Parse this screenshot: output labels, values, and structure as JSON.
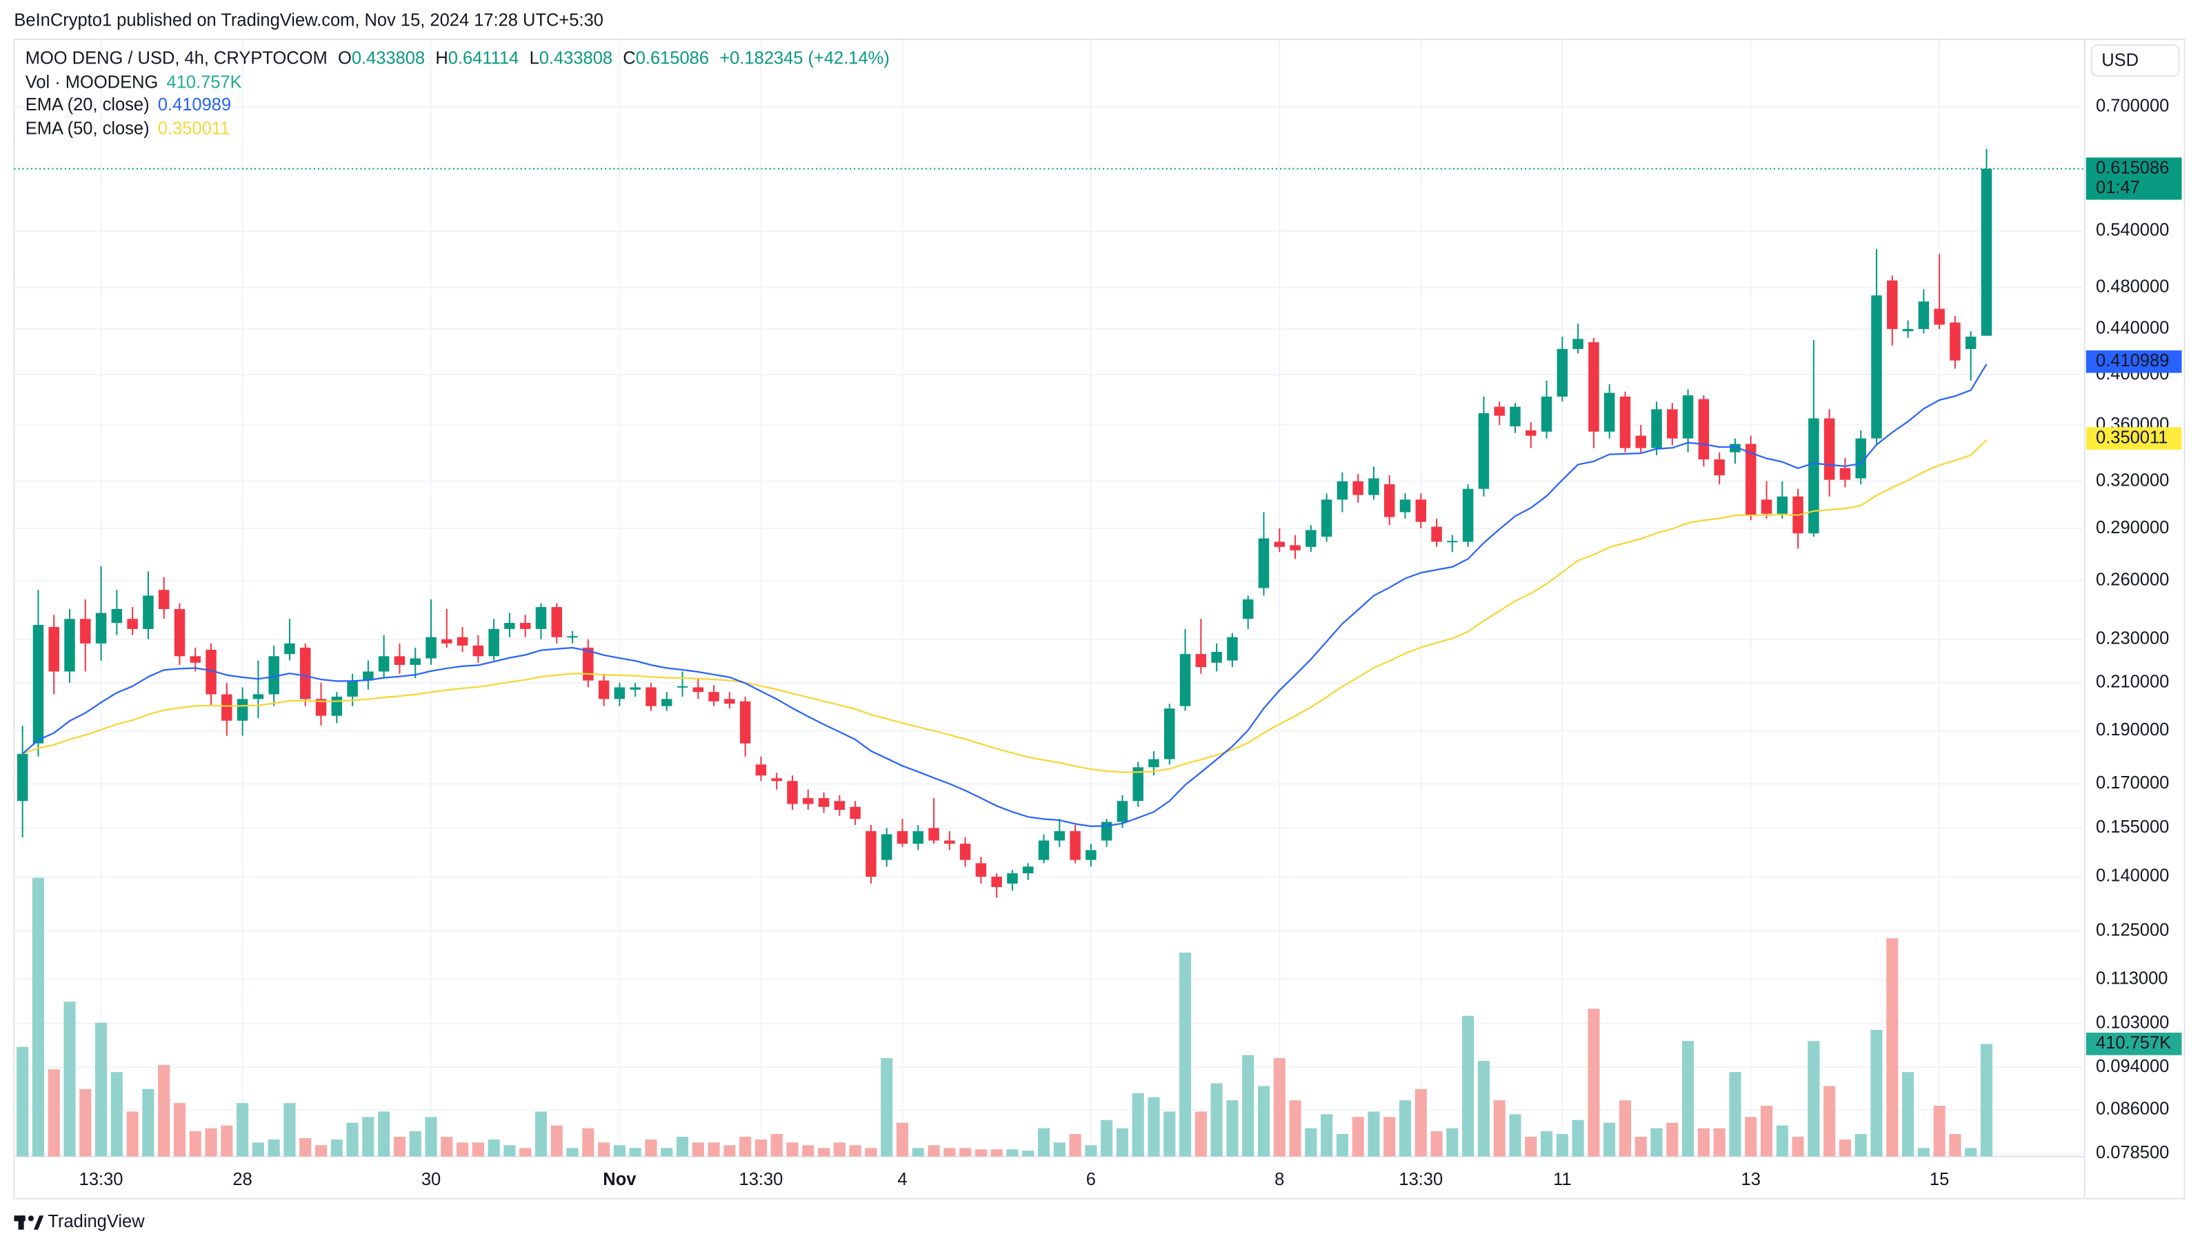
{
  "header": "BeInCrypto1 published on TradingView.com, Nov 15, 2024 17:28 UTC+5:30",
  "footer": "TradingView",
  "currency": "USD",
  "legend": {
    "symbol": "MOO DENG / USD, 4h, CRYPTOCOM",
    "ohlc_labels": [
      "O",
      "H",
      "L",
      "C"
    ],
    "change": "+0.182345 (+42.14%)",
    "vol_name": "Vol · MOODENG",
    "vol_value": "410.757K",
    "ema20_name": "EMA (20, close)",
    "ema20_last": 0.410989,
    "ema20_color": "#2962ff",
    "ema50_name": "EMA (50, close)",
    "ema50_last": 0.350011,
    "ema50_color": "#f7d634",
    "countdown": "01:47"
  },
  "chart_data": {
    "type": "candlestick",
    "log_scale": true,
    "grid": true,
    "up_color": "#089981",
    "down_color": "#f23645",
    "vol_up_color": "#92d2cc",
    "vol_down_color": "#f7a9a7",
    "ylim": [
      0.078,
      0.8
    ],
    "yticks": [
      {
        "value": 0.7,
        "label": "0.700000"
      },
      {
        "value": 0.54,
        "label": "0.540000"
      },
      {
        "value": 0.48,
        "label": "0.480000"
      },
      {
        "value": 0.44,
        "label": "0.440000"
      },
      {
        "value": 0.4,
        "label": "0.400000"
      },
      {
        "value": 0.36,
        "label": "0.360000"
      },
      {
        "value": 0.32,
        "label": "0.320000"
      },
      {
        "value": 0.29,
        "label": "0.290000"
      },
      {
        "value": 0.26,
        "label": "0.260000"
      },
      {
        "value": 0.23,
        "label": "0.230000"
      },
      {
        "value": 0.21,
        "label": "0.210000"
      },
      {
        "value": 0.19,
        "label": "0.190000"
      },
      {
        "value": 0.17,
        "label": "0.170000"
      },
      {
        "value": 0.155,
        "label": "0.155000"
      },
      {
        "value": 0.14,
        "label": "0.140000"
      },
      {
        "value": 0.125,
        "label": "0.125000"
      },
      {
        "value": 0.113,
        "label": "0.113000"
      },
      {
        "value": 0.103,
        "label": "0.103000"
      },
      {
        "value": 0.094,
        "label": "0.094000"
      },
      {
        "value": 0.086,
        "label": "0.086000"
      },
      {
        "value": 0.0785,
        "label": "0.078500"
      }
    ],
    "volume_ylim": [
      0,
      1232000
    ],
    "categories": [
      null,
      null,
      null,
      null,
      null,
      "13:30",
      null,
      null,
      null,
      null,
      null,
      null,
      null,
      null,
      "28",
      null,
      null,
      null,
      null,
      null,
      null,
      null,
      null,
      null,
      null,
      null,
      "30",
      null,
      null,
      null,
      null,
      null,
      null,
      null,
      null,
      null,
      null,
      null,
      "Nov",
      null,
      null,
      null,
      null,
      null,
      null,
      null,
      null,
      "13:30",
      null,
      null,
      null,
      null,
      null,
      null,
      null,
      null,
      "4",
      null,
      null,
      null,
      null,
      null,
      null,
      null,
      null,
      null,
      null,
      null,
      "6",
      null,
      null,
      null,
      null,
      null,
      null,
      null,
      null,
      null,
      null,
      null,
      "8",
      null,
      null,
      null,
      null,
      null,
      null,
      null,
      null,
      "13:30",
      null,
      null,
      null,
      null,
      null,
      null,
      null,
      null,
      "11",
      null,
      null,
      null,
      null,
      null,
      null,
      null,
      null,
      null,
      null,
      null,
      "13",
      null,
      null,
      null,
      null,
      null,
      null,
      null,
      null,
      null,
      null,
      null,
      "15",
      null,
      null,
      null
    ],
    "ohlc": [
      [
        0.164,
        0.192,
        0.152,
        0.181
      ],
      [
        0.185,
        0.255,
        0.18,
        0.237
      ],
      [
        0.236,
        0.242,
        0.205,
        0.215
      ],
      [
        0.215,
        0.245,
        0.21,
        0.24
      ],
      [
        0.24,
        0.25,
        0.215,
        0.228
      ],
      [
        0.228,
        0.268,
        0.22,
        0.243
      ],
      [
        0.238,
        0.255,
        0.232,
        0.245
      ],
      [
        0.24,
        0.246,
        0.232,
        0.235
      ],
      [
        0.235,
        0.265,
        0.23,
        0.252
      ],
      [
        0.255,
        0.262,
        0.24,
        0.245
      ],
      [
        0.245,
        0.248,
        0.218,
        0.222
      ],
      [
        0.222,
        0.226,
        0.215,
        0.219
      ],
      [
        0.225,
        0.228,
        0.2,
        0.205
      ],
      [
        0.205,
        0.21,
        0.188,
        0.194
      ],
      [
        0.194,
        0.208,
        0.188,
        0.203
      ],
      [
        0.203,
        0.22,
        0.195,
        0.205
      ],
      [
        0.205,
        0.227,
        0.2,
        0.222
      ],
      [
        0.223,
        0.24,
        0.22,
        0.228
      ],
      [
        0.226,
        0.228,
        0.2,
        0.203
      ],
      [
        0.203,
        0.21,
        0.192,
        0.196
      ],
      [
        0.196,
        0.206,
        0.193,
        0.204
      ],
      [
        0.204,
        0.214,
        0.2,
        0.211
      ],
      [
        0.211,
        0.22,
        0.207,
        0.215
      ],
      [
        0.215,
        0.232,
        0.212,
        0.222
      ],
      [
        0.222,
        0.228,
        0.214,
        0.218
      ],
      [
        0.218,
        0.226,
        0.212,
        0.221
      ],
      [
        0.221,
        0.25,
        0.218,
        0.231
      ],
      [
        0.23,
        0.245,
        0.226,
        0.228
      ],
      [
        0.231,
        0.236,
        0.224,
        0.227
      ],
      [
        0.227,
        0.232,
        0.219,
        0.222
      ],
      [
        0.222,
        0.24,
        0.22,
        0.235
      ],
      [
        0.235,
        0.243,
        0.231,
        0.238
      ],
      [
        0.238,
        0.242,
        0.231,
        0.235
      ],
      [
        0.235,
        0.248,
        0.23,
        0.246
      ],
      [
        0.246,
        0.248,
        0.228,
        0.231
      ],
      [
        0.231,
        0.234,
        0.228,
        0.2315
      ],
      [
        0.226,
        0.23,
        0.208,
        0.211
      ],
      [
        0.211,
        0.214,
        0.2,
        0.203
      ],
      [
        0.203,
        0.21,
        0.2,
        0.208
      ],
      [
        0.207,
        0.21,
        0.204,
        0.208
      ],
      [
        0.208,
        0.21,
        0.198,
        0.2
      ],
      [
        0.2,
        0.206,
        0.198,
        0.203
      ],
      [
        0.208,
        0.215,
        0.204,
        0.2085
      ],
      [
        0.208,
        0.212,
        0.203,
        0.206
      ],
      [
        0.206,
        0.209,
        0.2,
        0.202
      ],
      [
        0.203,
        0.206,
        0.199,
        0.201
      ],
      [
        0.202,
        0.204,
        0.18,
        0.185
      ],
      [
        0.177,
        0.18,
        0.171,
        0.173
      ],
      [
        0.172,
        0.174,
        0.168,
        0.171
      ],
      [
        0.171,
        0.173,
        0.161,
        0.163
      ],
      [
        0.165,
        0.168,
        0.161,
        0.163
      ],
      [
        0.165,
        0.167,
        0.16,
        0.162
      ],
      [
        0.164,
        0.166,
        0.159,
        0.161
      ],
      [
        0.162,
        0.164,
        0.156,
        0.158
      ],
      [
        0.154,
        0.156,
        0.138,
        0.14
      ],
      [
        0.145,
        0.155,
        0.143,
        0.153
      ],
      [
        0.154,
        0.158,
        0.149,
        0.15
      ],
      [
        0.15,
        0.156,
        0.148,
        0.154
      ],
      [
        0.155,
        0.165,
        0.15,
        0.151
      ],
      [
        0.151,
        0.154,
        0.148,
        0.15
      ],
      [
        0.15,
        0.152,
        0.143,
        0.145
      ],
      [
        0.144,
        0.146,
        0.138,
        0.14
      ],
      [
        0.14,
        0.141,
        0.134,
        0.137
      ],
      [
        0.138,
        0.142,
        0.136,
        0.141
      ],
      [
        0.141,
        0.144,
        0.139,
        0.143
      ],
      [
        0.145,
        0.153,
        0.144,
        0.151
      ],
      [
        0.151,
        0.158,
        0.149,
        0.154
      ],
      [
        0.154,
        0.156,
        0.144,
        0.145
      ],
      [
        0.145,
        0.15,
        0.143,
        0.148
      ],
      [
        0.151,
        0.158,
        0.149,
        0.157
      ],
      [
        0.157,
        0.166,
        0.155,
        0.164
      ],
      [
        0.164,
        0.178,
        0.162,
        0.176
      ],
      [
        0.176,
        0.182,
        0.173,
        0.179
      ],
      [
        0.179,
        0.201,
        0.177,
        0.199
      ],
      [
        0.2,
        0.235,
        0.198,
        0.223
      ],
      [
        0.223,
        0.24,
        0.214,
        0.217
      ],
      [
        0.219,
        0.228,
        0.215,
        0.224
      ],
      [
        0.22,
        0.233,
        0.217,
        0.231
      ],
      [
        0.24,
        0.252,
        0.235,
        0.25
      ],
      [
        0.256,
        0.3,
        0.252,
        0.284
      ],
      [
        0.282,
        0.29,
        0.276,
        0.279
      ],
      [
        0.28,
        0.286,
        0.272,
        0.277
      ],
      [
        0.279,
        0.292,
        0.276,
        0.289
      ],
      [
        0.285,
        0.312,
        0.282,
        0.308
      ],
      [
        0.308,
        0.326,
        0.3,
        0.32
      ],
      [
        0.32,
        0.325,
        0.306,
        0.311
      ],
      [
        0.311,
        0.33,
        0.308,
        0.322
      ],
      [
        0.318,
        0.324,
        0.292,
        0.297
      ],
      [
        0.3,
        0.312,
        0.296,
        0.308
      ],
      [
        0.308,
        0.312,
        0.29,
        0.294
      ],
      [
        0.291,
        0.296,
        0.279,
        0.282
      ],
      [
        0.282,
        0.286,
        0.276,
        0.2825
      ],
      [
        0.282,
        0.318,
        0.279,
        0.315
      ],
      [
        0.315,
        0.382,
        0.31,
        0.369
      ],
      [
        0.374,
        0.378,
        0.36,
        0.367
      ],
      [
        0.359,
        0.377,
        0.354,
        0.374
      ],
      [
        0.356,
        0.362,
        0.343,
        0.352
      ],
      [
        0.355,
        0.395,
        0.35,
        0.382
      ],
      [
        0.382,
        0.433,
        0.378,
        0.422
      ],
      [
        0.422,
        0.445,
        0.418,
        0.431
      ],
      [
        0.428,
        0.432,
        0.343,
        0.355
      ],
      [
        0.355,
        0.392,
        0.35,
        0.385
      ],
      [
        0.382,
        0.386,
        0.34,
        0.343
      ],
      [
        0.352,
        0.36,
        0.34,
        0.343
      ],
      [
        0.343,
        0.378,
        0.338,
        0.372
      ],
      [
        0.372,
        0.377,
        0.345,
        0.35
      ],
      [
        0.35,
        0.388,
        0.34,
        0.383
      ],
      [
        0.38,
        0.383,
        0.33,
        0.335
      ],
      [
        0.335,
        0.34,
        0.318,
        0.324
      ],
      [
        0.34,
        0.35,
        0.332,
        0.346
      ],
      [
        0.346,
        0.352,
        0.295,
        0.298
      ],
      [
        0.308,
        0.32,
        0.296,
        0.299
      ],
      [
        0.299,
        0.32,
        0.296,
        0.31
      ],
      [
        0.31,
        0.315,
        0.278,
        0.287
      ],
      [
        0.287,
        0.43,
        0.285,
        0.365
      ],
      [
        0.365,
        0.372,
        0.31,
        0.321
      ],
      [
        0.329,
        0.336,
        0.316,
        0.321
      ],
      [
        0.322,
        0.356,
        0.318,
        0.35
      ],
      [
        0.35,
        0.52,
        0.345,
        0.472
      ],
      [
        0.487,
        0.492,
        0.425,
        0.44
      ],
      [
        0.438,
        0.448,
        0.432,
        0.44
      ],
      [
        0.44,
        0.478,
        0.436,
        0.466
      ],
      [
        0.459,
        0.515,
        0.44,
        0.444
      ],
      [
        0.446,
        0.452,
        0.405,
        0.412
      ],
      [
        0.422,
        0.438,
        0.395,
        0.433
      ],
      [
        0.433808,
        0.641114,
        0.433808,
        0.615086
      ]
    ],
    "volumes": [
      400000,
      1017000,
      318000,
      565000,
      246000,
      488000,
      308000,
      164000,
      246000,
      334000,
      195000,
      92000,
      103000,
      113000,
      195000,
      51000,
      62000,
      195000,
      67000,
      41000,
      62000,
      123000,
      144000,
      164000,
      72000,
      92000,
      144000,
      72000,
      51000,
      51000,
      62000,
      41000,
      31000,
      164000,
      113000,
      31000,
      103000,
      51000,
      41000,
      31000,
      62000,
      31000,
      72000,
      51000,
      51000,
      41000,
      72000,
      62000,
      82000,
      51000,
      41000,
      31000,
      51000,
      41000,
      31000,
      359000,
      123000,
      31000,
      41000,
      31000,
      31000,
      26000,
      26000,
      26000,
      21000,
      103000,
      51000,
      82000,
      41000,
      133000,
      103000,
      231000,
      216000,
      164000,
      744000,
      164000,
      267000,
      205000,
      370000,
      257000,
      359000,
      205000,
      103000,
      154000,
      82000,
      144000,
      164000,
      144000,
      205000,
      246000,
      92000,
      103000,
      513000,
      349000,
      205000,
      154000,
      72000,
      92000,
      82000,
      133000,
      539000,
      123000,
      205000,
      72000,
      103000,
      123000,
      421000,
      103000,
      103000,
      308000,
      144000,
      185000,
      113000,
      72000,
      421000,
      257000,
      62000,
      82000,
      462000,
      796000,
      308000,
      31000,
      185000,
      82000,
      31000,
      410757
    ]
  }
}
